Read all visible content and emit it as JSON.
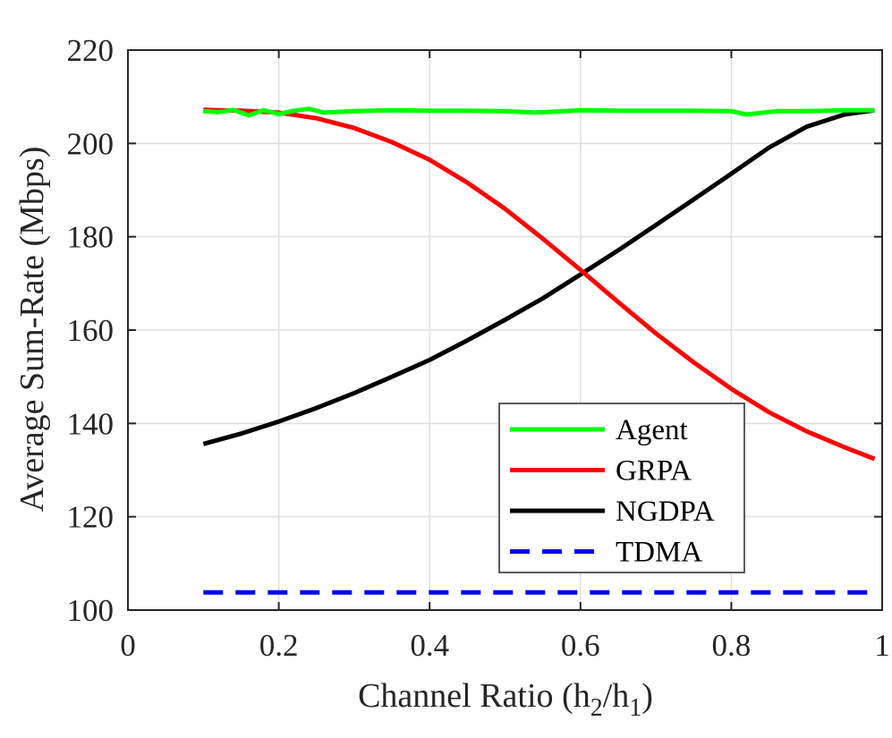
{
  "chart_data": {
    "type": "line",
    "xlabel_main": "Channel Ratio (h",
    "xlabel_sub1": "2",
    "xlabel_mid": "/h",
    "xlabel_sub2": "1",
    "xlabel_end": ")",
    "ylabel": "Average Sum-Rate (Mbps)",
    "xlim": [
      0,
      1
    ],
    "ylim": [
      100,
      220
    ],
    "xticks": [
      0,
      0.2,
      0.4,
      0.6,
      0.8,
      1
    ],
    "xtick_labels": [
      "0",
      "0.2",
      "0.4",
      "0.6",
      "0.8",
      "1"
    ],
    "yticks": [
      100,
      120,
      140,
      160,
      180,
      200,
      220
    ],
    "ytick_labels": [
      "100",
      "120",
      "140",
      "160",
      "180",
      "200",
      "220"
    ],
    "grid": true,
    "legend_position": "bottom-right",
    "series": [
      {
        "name": "Agent",
        "color": "#00ff00",
        "dash": "solid",
        "x": [
          0.1,
          0.12,
          0.14,
          0.16,
          0.18,
          0.2,
          0.22,
          0.24,
          0.26,
          0.3,
          0.35,
          0.4,
          0.45,
          0.5,
          0.54,
          0.6,
          0.65,
          0.7,
          0.75,
          0.8,
          0.82,
          0.86,
          0.9,
          0.95,
          0.99
        ],
        "y": [
          206.9,
          206.7,
          207.2,
          206.0,
          207.1,
          206.3,
          207.0,
          207.4,
          206.6,
          206.9,
          207.1,
          207.0,
          207.0,
          206.9,
          206.6,
          207.1,
          207.0,
          207.0,
          207.0,
          206.9,
          206.2,
          206.9,
          206.9,
          207.1,
          207.1
        ]
      },
      {
        "name": "GRPA",
        "color": "#ff0000",
        "dash": "solid",
        "x": [
          0.1,
          0.15,
          0.2,
          0.25,
          0.3,
          0.35,
          0.4,
          0.45,
          0.5,
          0.55,
          0.6,
          0.65,
          0.7,
          0.75,
          0.8,
          0.85,
          0.9,
          0.95,
          0.99
        ],
        "y": [
          207.2,
          207.0,
          206.6,
          205.4,
          203.3,
          200.3,
          196.5,
          191.6,
          186.0,
          179.6,
          172.9,
          166.0,
          159.3,
          153.1,
          147.4,
          142.4,
          138.3,
          134.9,
          132.4
        ]
      },
      {
        "name": "NGDPA",
        "color": "#000000",
        "dash": "solid",
        "x": [
          0.1,
          0.15,
          0.2,
          0.25,
          0.3,
          0.35,
          0.4,
          0.45,
          0.5,
          0.55,
          0.6,
          0.65,
          0.7,
          0.75,
          0.8,
          0.85,
          0.9,
          0.95,
          0.99
        ],
        "y": [
          135.6,
          137.8,
          140.4,
          143.3,
          146.5,
          150.0,
          153.6,
          157.8,
          162.2,
          166.8,
          171.9,
          177.1,
          182.5,
          188.0,
          193.5,
          199.1,
          203.6,
          206.2,
          207.1
        ]
      },
      {
        "name": "TDMA",
        "color": "#0000ee",
        "dash": "dashed",
        "x": [
          0.1,
          0.99
        ],
        "y": [
          103.8,
          103.8
        ]
      }
    ]
  }
}
